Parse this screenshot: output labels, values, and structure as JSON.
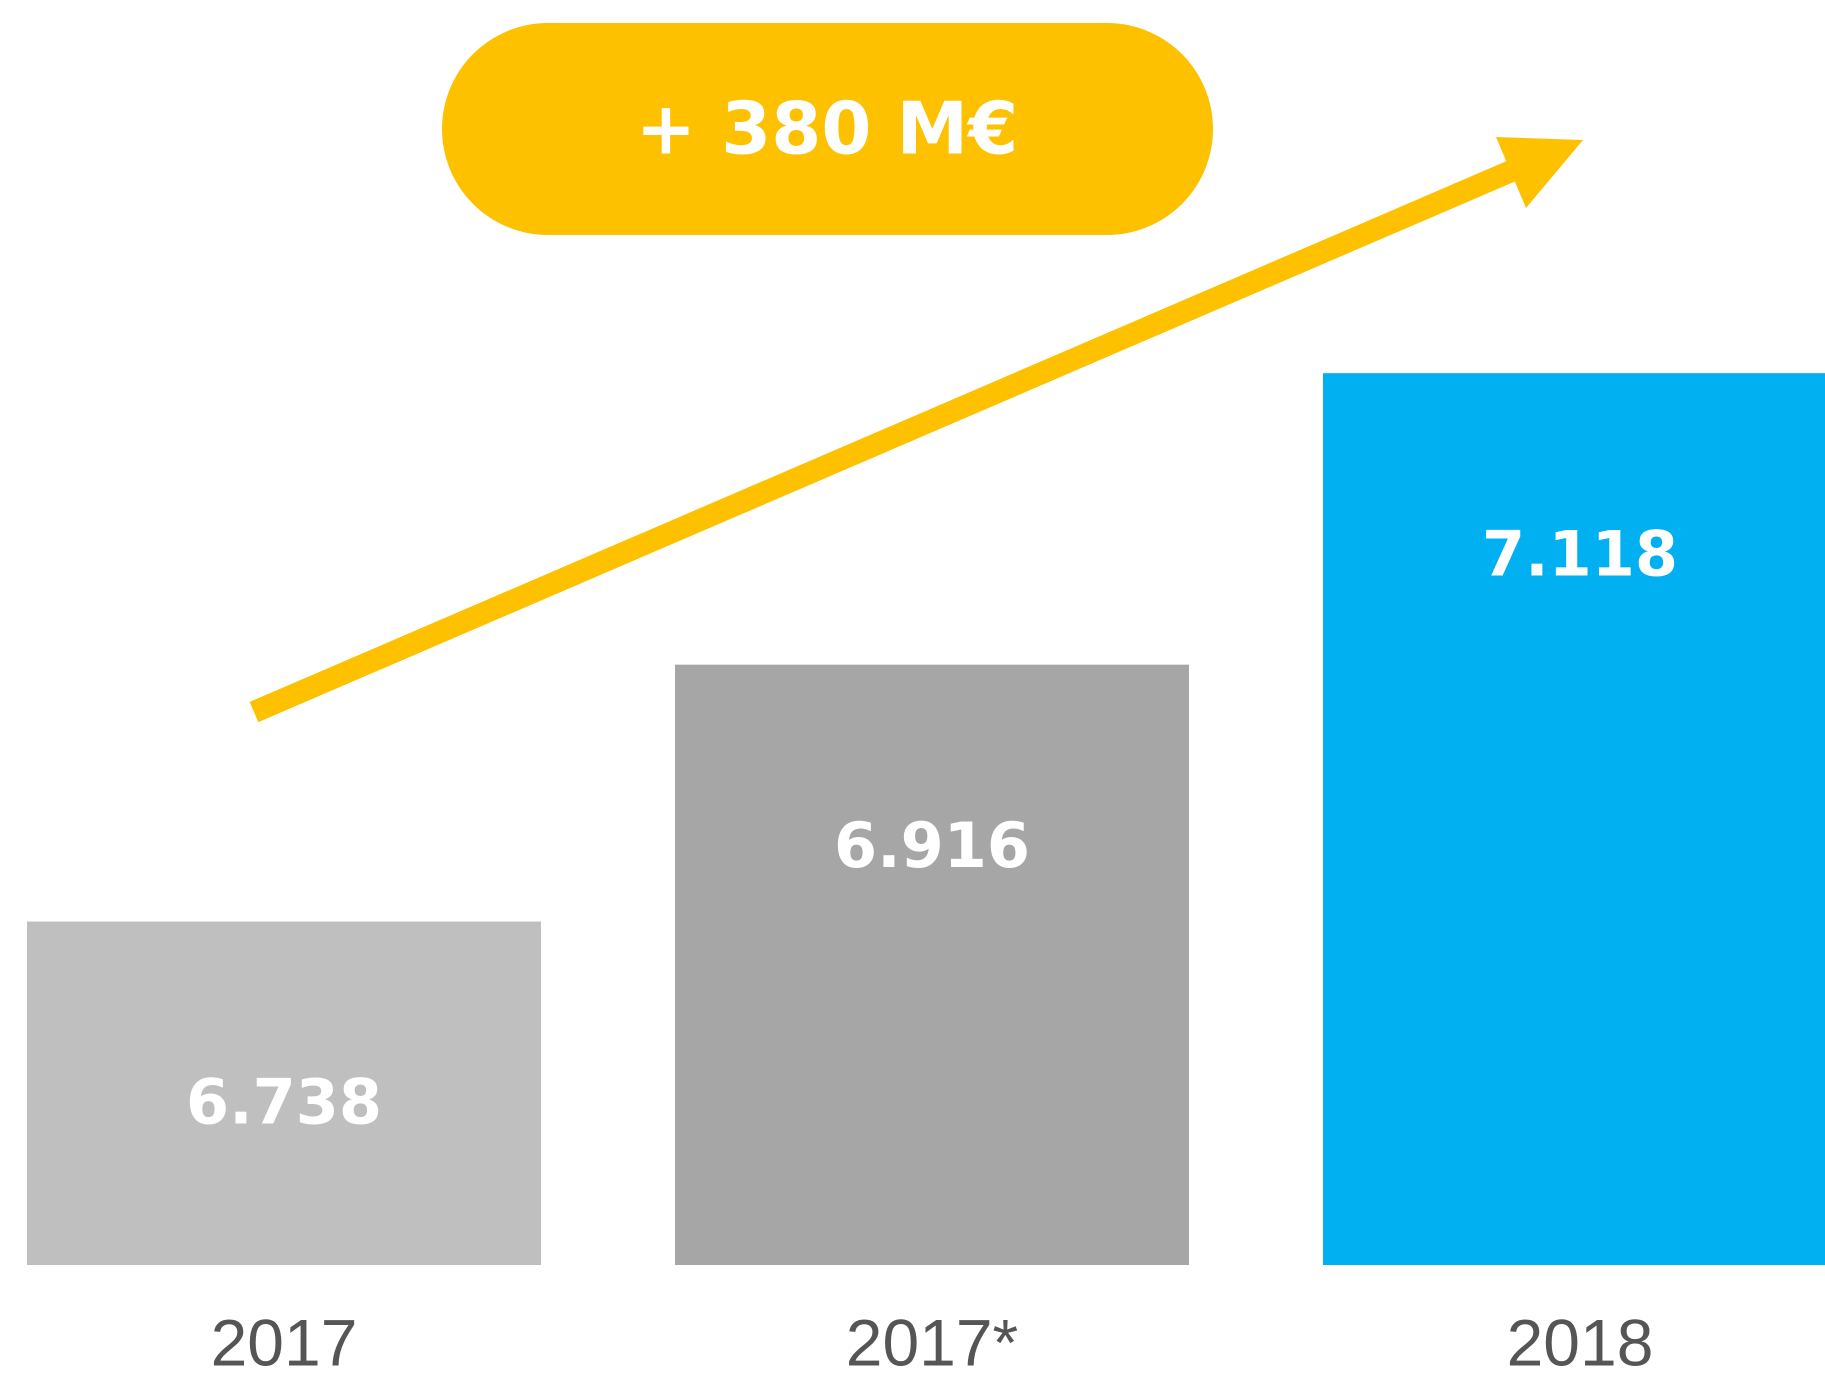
{
  "chart_data": {
    "type": "bar",
    "annotation": "+ 380 M€",
    "categories": [
      "2017",
      "2017*",
      "2018"
    ],
    "values": [
      6738,
      6916,
      7118
    ],
    "value_labels": [
      "6.738",
      "6.916",
      "7.118"
    ],
    "colors": [
      "#bfbfbf",
      "#a6a6a6",
      "#00b0f0"
    ],
    "annotation_color": "#fdc100",
    "ylim": [
      6500,
      7150
    ]
  }
}
